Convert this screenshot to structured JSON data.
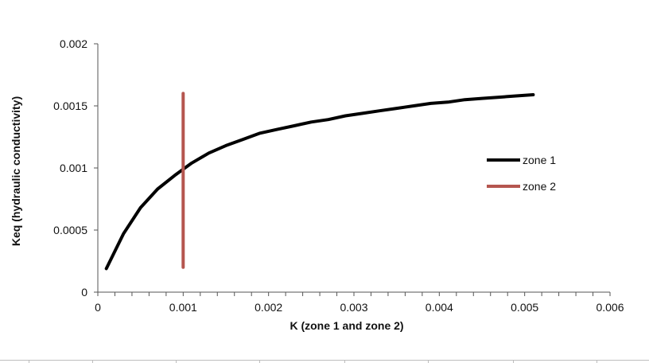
{
  "chart_data": {
    "type": "line",
    "xlabel": "K (zone 1 and zone 2)",
    "ylabel": "Keq (hydraulic conductivity)",
    "xlim": [
      0,
      0.006
    ],
    "ylim": [
      0,
      0.002
    ],
    "x_ticks": [
      "0",
      "0.001",
      "0.002",
      "0.003",
      "0.004",
      "0.005",
      "0.006"
    ],
    "y_ticks": [
      "0",
      "0.0005",
      "0.001",
      "0.0015",
      "0.002"
    ],
    "x_minor_step": 0.0002,
    "grid": false,
    "legend_position": "right",
    "series": [
      {
        "name": "zone 1",
        "color": "#000000",
        "x": [
          0.0001,
          0.0003,
          0.0005,
          0.0007,
          0.0009,
          0.0011,
          0.0013,
          0.0015,
          0.0017,
          0.0019,
          0.0021,
          0.0023,
          0.0025,
          0.0027,
          0.0029,
          0.0031,
          0.0033,
          0.0035,
          0.0037,
          0.0039,
          0.0041,
          0.0043,
          0.0045,
          0.0047,
          0.0049,
          0.0051
        ],
        "y": [
          0.00019,
          0.00047,
          0.00068,
          0.00083,
          0.00094,
          0.00104,
          0.00112,
          0.00118,
          0.00123,
          0.00128,
          0.00131,
          0.00134,
          0.00137,
          0.00139,
          0.00142,
          0.00144,
          0.00146,
          0.00148,
          0.0015,
          0.00152,
          0.00153,
          0.00155,
          0.00156,
          0.00157,
          0.00158,
          0.00159
        ]
      },
      {
        "name": "zone 2",
        "color": "#b5564f",
        "x": [
          0.001,
          0.001
        ],
        "y": [
          0.0002,
          0.0016
        ]
      }
    ]
  }
}
